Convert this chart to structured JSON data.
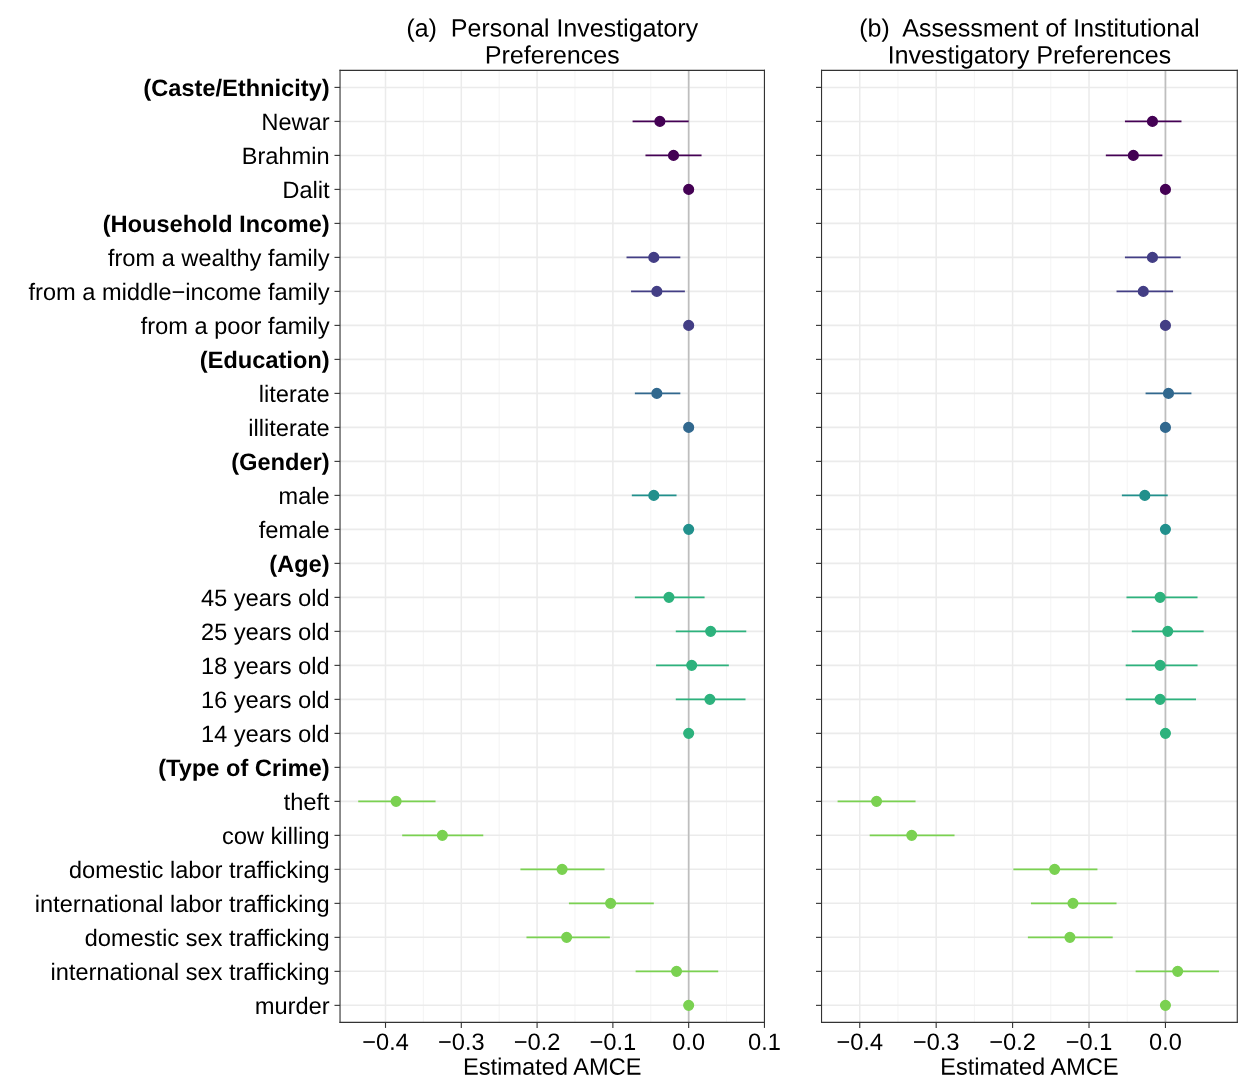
{
  "chart_data": [
    {
      "type": "scatter",
      "orientation": "horizontal",
      "title": "(a)  Personal Investigatory\nPreferences",
      "xlabel": "Estimated AMCE",
      "categories": [
        "(Caste/Ethnicity)",
        "Newar",
        "Brahmin",
        "Dalit",
        "(Household Income)",
        "from a wealthy family",
        "from a middle−income family",
        "from a poor family",
        "(Education)",
        "literate",
        "illiterate",
        "(Gender)",
        "male",
        "female",
        "(Age)",
        "45 years old",
        "25 years old",
        "18 years old",
        "16 years old",
        "14 years old",
        "(Type of Crime)",
        "theft",
        "cow killing",
        "domestic labor trafficking",
        "international labor trafficking",
        "domestic sex trafficking",
        "international sex trafficking",
        "murder"
      ],
      "values": [
        null,
        -0.038,
        -0.02,
        0,
        null,
        -0.046,
        -0.042,
        0,
        null,
        -0.042,
        0,
        null,
        -0.046,
        0,
        null,
        -0.026,
        0.029,
        0.004,
        0.028,
        0,
        null,
        -0.386,
        -0.325,
        -0.167,
        -0.103,
        -0.161,
        -0.016,
        0
      ],
      "errors": [
        null,
        [
          -0.074,
          0.0
        ],
        [
          -0.057,
          0.017
        ],
        null,
        null,
        [
          -0.082,
          -0.011
        ],
        [
          -0.076,
          -0.005
        ],
        null,
        null,
        [
          -0.071,
          -0.011
        ],
        null,
        null,
        [
          -0.075,
          -0.016
        ],
        null,
        null,
        [
          -0.071,
          0.021
        ],
        [
          -0.017,
          0.076
        ],
        [
          -0.043,
          0.053
        ],
        [
          -0.017,
          0.075
        ],
        null,
        null,
        [
          -0.436,
          -0.334
        ],
        [
          -0.378,
          -0.271
        ],
        [
          -0.222,
          -0.111
        ],
        [
          -0.158,
          -0.046
        ],
        [
          -0.214,
          -0.104
        ],
        [
          -0.07,
          0.039
        ],
        null
      ],
      "colors": [
        null,
        "#440154",
        "#440154",
        "#440154",
        null,
        "#433e85",
        "#433e85",
        "#433e85",
        null,
        "#31688e",
        "#31688e",
        null,
        "#21908c",
        "#21908c",
        null,
        "#2db27d",
        "#2db27d",
        "#2db27d",
        "#2db27d",
        "#2db27d",
        null,
        "#7ad151",
        "#7ad151",
        "#7ad151",
        "#7ad151",
        "#7ad151",
        "#7ad151",
        "#7ad151"
      ],
      "xlim": [
        -0.46,
        0.1
      ],
      "xticks": [
        {
          "value": -0.4,
          "label": "−0.4"
        },
        {
          "value": -0.3,
          "label": "−0.3"
        },
        {
          "value": -0.2,
          "label": "−0.2"
        },
        {
          "value": -0.1,
          "label": "−0.1"
        },
        {
          "value": 0,
          "label": "0.0"
        },
        {
          "value": 0.1,
          "label": "0.1"
        }
      ],
      "ref_lines": [
        {
          "axis": "x",
          "value": 0,
          "color": "#bebebe"
        }
      ],
      "grid": true,
      "marker": "circle"
    },
    {
      "type": "scatter",
      "orientation": "horizontal",
      "title": "(b)  Assessment of Institutional\nInvestigatory Preferences",
      "xlabel": "Estimated AMCE",
      "categories": [
        null,
        null,
        null,
        null,
        null,
        null,
        null,
        null,
        null,
        null,
        null,
        null,
        null,
        null,
        null,
        null,
        null,
        null,
        null,
        null,
        null,
        null,
        null,
        null,
        null,
        null,
        null,
        null
      ],
      "values": [
        null,
        -0.017,
        -0.042,
        0,
        null,
        -0.017,
        -0.029,
        0,
        null,
        0.004,
        0,
        null,
        -0.027,
        0,
        null,
        -0.007,
        0.003,
        -0.007,
        -0.007,
        0,
        null,
        -0.378,
        -0.332,
        -0.145,
        -0.121,
        -0.125,
        0.016,
        0
      ],
      "errors": [
        null,
        [
          -0.053,
          0.021
        ],
        [
          -0.078,
          -0.004
        ],
        null,
        null,
        [
          -0.053,
          0.02
        ],
        [
          -0.064,
          0.01
        ],
        null,
        null,
        [
          -0.026,
          0.034
        ],
        null,
        null,
        [
          -0.057,
          0.003
        ],
        null,
        null,
        [
          -0.051,
          0.042
        ],
        [
          -0.044,
          0.05
        ],
        [
          -0.052,
          0.042
        ],
        [
          -0.052,
          0.04
        ],
        null,
        null,
        [
          -0.429,
          -0.327
        ],
        [
          -0.387,
          -0.276
        ],
        [
          -0.199,
          -0.089
        ],
        [
          -0.176,
          -0.064
        ],
        [
          -0.18,
          -0.069
        ],
        [
          -0.039,
          0.07
        ],
        null
      ],
      "colors": [
        null,
        "#440154",
        "#440154",
        "#440154",
        null,
        "#433e85",
        "#433e85",
        "#433e85",
        null,
        "#31688e",
        "#31688e",
        null,
        "#21908c",
        "#21908c",
        null,
        "#2db27d",
        "#2db27d",
        "#2db27d",
        "#2db27d",
        "#2db27d",
        null,
        "#7ad151",
        "#7ad151",
        "#7ad151",
        "#7ad151",
        "#7ad151",
        "#7ad151",
        "#7ad151"
      ],
      "xlim": [
        -0.45,
        0.094
      ],
      "xticks": [
        {
          "value": -0.4,
          "label": "−0.4"
        },
        {
          "value": -0.3,
          "label": "−0.3"
        },
        {
          "value": -0.2,
          "label": "−0.2"
        },
        {
          "value": -0.1,
          "label": "−0.1"
        },
        {
          "value": 0,
          "label": "0.0"
        }
      ],
      "ref_lines": [
        {
          "axis": "x",
          "value": 0,
          "color": "#bebebe"
        }
      ],
      "grid": true,
      "marker": "circle",
      "tick_labels": "x"
    }
  ]
}
